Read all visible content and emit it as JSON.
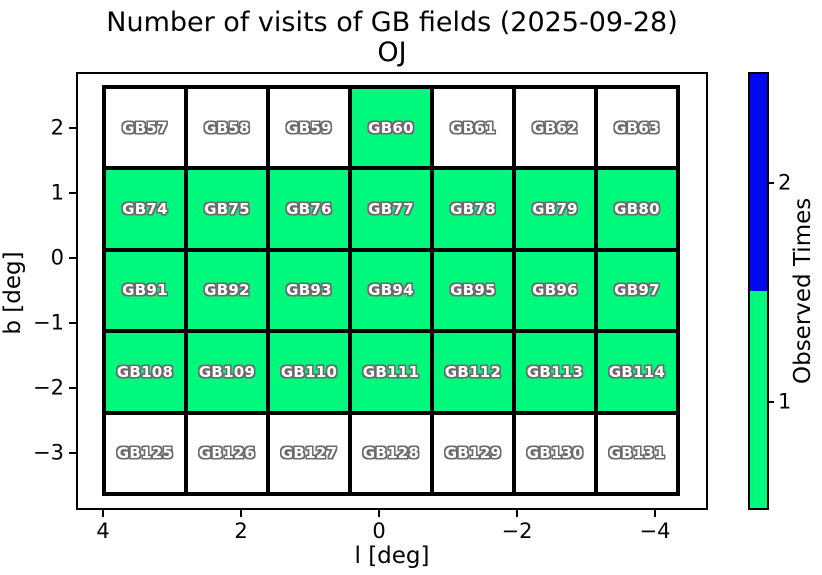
{
  "title": "Number of visits of GB fields (2025-09-28)",
  "subtitle": "OJ",
  "chart_data": {
    "type": "heatmap",
    "title": "Number of visits of GB fields (2025-09-28)",
    "subtitle": "OJ",
    "xlabel": "l [deg]",
    "ylabel": "b [deg]",
    "x_tick_labels": [
      "4",
      "2",
      "0",
      "−2",
      "−4"
    ],
    "x_tick_values": [
      4,
      2,
      0,
      -2,
      -4
    ],
    "y_tick_labels": [
      "2",
      "1",
      "0",
      "−1",
      "−2",
      "−3"
    ],
    "y_tick_values": [
      2,
      1,
      0,
      -1,
      -2,
      -3
    ],
    "x_range_approx": [
      4.4,
      -4.8
    ],
    "y_range_approx": [
      2.75,
      -3.75
    ],
    "grid": "off",
    "colors": {
      "observed_once": "#00f97d",
      "observed_twice": "#0008f0",
      "unobserved": "#ffffff",
      "cell_border": "#000000"
    },
    "colorbar": {
      "label": "Observed Times",
      "tick_labels": [
        "2",
        "1"
      ],
      "segments": [
        {
          "value": 2,
          "color": "#0008f0",
          "position": "top"
        },
        {
          "value": 1,
          "color": "#00f97d",
          "position": "bottom"
        }
      ]
    },
    "rows": [
      {
        "fields": [
          {
            "name": "GB57",
            "visits": 0
          },
          {
            "name": "GB58",
            "visits": 0
          },
          {
            "name": "GB59",
            "visits": 0
          },
          {
            "name": "GB60",
            "visits": 1
          },
          {
            "name": "GB61",
            "visits": 0
          },
          {
            "name": "GB62",
            "visits": 0
          },
          {
            "name": "GB63",
            "visits": 0
          }
        ]
      },
      {
        "fields": [
          {
            "name": "GB74",
            "visits": 1
          },
          {
            "name": "GB75",
            "visits": 1
          },
          {
            "name": "GB76",
            "visits": 1
          },
          {
            "name": "GB77",
            "visits": 1
          },
          {
            "name": "GB78",
            "visits": 1
          },
          {
            "name": "GB79",
            "visits": 1
          },
          {
            "name": "GB80",
            "visits": 1
          }
        ]
      },
      {
        "fields": [
          {
            "name": "GB91",
            "visits": 1
          },
          {
            "name": "GB92",
            "visits": 1
          },
          {
            "name": "GB93",
            "visits": 1
          },
          {
            "name": "GB94",
            "visits": 1
          },
          {
            "name": "GB95",
            "visits": 1
          },
          {
            "name": "GB96",
            "visits": 1
          },
          {
            "name": "GB97",
            "visits": 1
          }
        ]
      },
      {
        "fields": [
          {
            "name": "GB108",
            "visits": 1
          },
          {
            "name": "GB109",
            "visits": 1
          },
          {
            "name": "GB110",
            "visits": 1
          },
          {
            "name": "GB111",
            "visits": 1
          },
          {
            "name": "GB112",
            "visits": 1
          },
          {
            "name": "GB113",
            "visits": 1
          },
          {
            "name": "GB114",
            "visits": 1
          }
        ]
      },
      {
        "fields": [
          {
            "name": "GB125",
            "visits": 0
          },
          {
            "name": "GB126",
            "visits": 0
          },
          {
            "name": "GB127",
            "visits": 0
          },
          {
            "name": "GB128",
            "visits": 0
          },
          {
            "name": "GB129",
            "visits": 0
          },
          {
            "name": "GB130",
            "visits": 0
          },
          {
            "name": "GB131",
            "visits": 0
          }
        ]
      }
    ]
  }
}
